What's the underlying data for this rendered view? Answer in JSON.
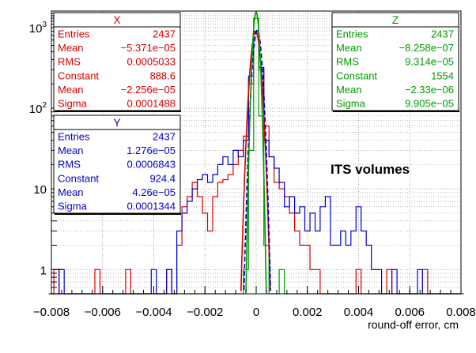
{
  "chart_data": {
    "type": "histogram",
    "title": "",
    "xlabel": "round-off error, cm",
    "ylabel": "",
    "xlim": [
      -0.008,
      0.008
    ],
    "ylim": [
      0.5,
      1600
    ],
    "yscale": "log",
    "grid": true,
    "x_ticks": [
      "−0.008",
      "−0.006",
      "−0.004",
      "−0.002",
      "0",
      "0.002",
      "0.004",
      "0.006",
      "0.008"
    ],
    "y_ticks": [
      "1",
      "10",
      "10²",
      "10³"
    ],
    "annotation": "ITS volumes",
    "colors": {
      "x": "#d40000",
      "y": "#0000cc",
      "z": "#009900",
      "frame": "#000000",
      "grid": "#888888"
    },
    "series": [
      {
        "name": "X",
        "color": "#d40000",
        "stats": [
          {
            "label": "Entries",
            "value": "2437"
          },
          {
            "label": "Mean",
            "value": "−5.371e−05"
          },
          {
            "label": "RMS",
            "value": "0.0005033"
          },
          {
            "label": "Constant",
            "value": "888.6"
          },
          {
            "label": "Mean",
            "value": "−2.256e−05"
          },
          {
            "label": "Sigma",
            "value": "0.0001488"
          }
        ],
        "hist": [
          [
            -0.0078,
            1
          ],
          [
            -0.0062,
            1
          ],
          [
            -0.005,
            1
          ],
          [
            -0.0034,
            1
          ],
          [
            -0.003,
            2
          ],
          [
            -0.0028,
            6
          ],
          [
            -0.0026,
            8
          ],
          [
            -0.0024,
            12
          ],
          [
            -0.0022,
            8
          ],
          [
            -0.002,
            5
          ],
          [
            -0.0018,
            3
          ],
          [
            -0.0016,
            8
          ],
          [
            -0.0014,
            12
          ],
          [
            -0.0012,
            13
          ],
          [
            -0.001,
            15
          ],
          [
            -0.0008,
            20
          ],
          [
            -0.0006,
            30
          ],
          [
            -0.0004,
            45
          ],
          [
            -0.0002,
            200
          ],
          [
            0.0,
            850
          ],
          [
            0.0002,
            300
          ],
          [
            0.0004,
            60
          ],
          [
            0.0006,
            25
          ],
          [
            0.0008,
            12
          ],
          [
            0.001,
            10
          ],
          [
            0.0012,
            8
          ],
          [
            0.0014,
            5
          ],
          [
            0.0016,
            3
          ],
          [
            0.0018,
            2
          ],
          [
            0.002,
            2
          ],
          [
            0.0022,
            1
          ],
          [
            0.0024,
            1
          ],
          [
            0.004,
            1
          ],
          [
            0.0052,
            1
          ],
          [
            0.0066,
            1
          ]
        ]
      },
      {
        "name": "Y",
        "color": "#0000cc",
        "stats": [
          {
            "label": "Entries",
            "value": "2437"
          },
          {
            "label": "Mean",
            "value": "1.276e−05"
          },
          {
            "label": "RMS",
            "value": "0.0006843"
          },
          {
            "label": "Constant",
            "value": "924.4"
          },
          {
            "label": "Mean",
            "value": "4.26e−05"
          },
          {
            "label": "Sigma",
            "value": "0.0001344"
          }
        ],
        "hist": [
          [
            -0.0076,
            1
          ],
          [
            -0.004,
            1
          ],
          [
            -0.0034,
            1
          ],
          [
            -0.003,
            3
          ],
          [
            -0.0028,
            5
          ],
          [
            -0.0026,
            7
          ],
          [
            -0.0024,
            10
          ],
          [
            -0.0022,
            13
          ],
          [
            -0.002,
            15
          ],
          [
            -0.0018,
            12
          ],
          [
            -0.0016,
            15
          ],
          [
            -0.0014,
            20
          ],
          [
            -0.0012,
            25
          ],
          [
            -0.001,
            20
          ],
          [
            -0.0008,
            30
          ],
          [
            -0.0006,
            25
          ],
          [
            -0.0004,
            40
          ],
          [
            -0.0002,
            250
          ],
          [
            0.0,
            900
          ],
          [
            0.0002,
            320
          ],
          [
            0.0004,
            40
          ],
          [
            0.0006,
            25
          ],
          [
            0.0008,
            18
          ],
          [
            0.001,
            12
          ],
          [
            0.0012,
            6
          ],
          [
            0.0014,
            8
          ],
          [
            0.0016,
            5
          ],
          [
            0.0018,
            6
          ],
          [
            0.002,
            3
          ],
          [
            0.0022,
            5
          ],
          [
            0.0024,
            3
          ],
          [
            0.0026,
            6
          ],
          [
            0.0028,
            8
          ],
          [
            0.003,
            2
          ],
          [
            0.0032,
            2
          ],
          [
            0.0034,
            3
          ],
          [
            0.0036,
            2
          ],
          [
            0.0038,
            3
          ],
          [
            0.004,
            6
          ],
          [
            0.0042,
            3
          ],
          [
            0.0044,
            2
          ],
          [
            0.0046,
            1
          ],
          [
            0.0048,
            1
          ],
          [
            0.0054,
            1
          ],
          [
            0.0064,
            1
          ]
        ]
      },
      {
        "name": "Z",
        "color": "#009900",
        "stats": [
          {
            "label": "Entries",
            "value": "2437"
          },
          {
            "label": "Mean",
            "value": "−8.258e−07"
          },
          {
            "label": "RMS",
            "value": "9.314e−05"
          },
          {
            "label": "Constant",
            "value": "1554"
          },
          {
            "label": "Mean",
            "value": "−2.33e−06"
          },
          {
            "label": "Sigma",
            "value": "9.905e−05"
          }
        ],
        "hist": [
          [
            -0.0004,
            1
          ],
          [
            -0.0002,
            30
          ],
          [
            0.0,
            1300
          ],
          [
            0.0002,
            80
          ],
          [
            0.0004,
            2
          ],
          [
            0.001,
            1
          ]
        ]
      }
    ]
  }
}
